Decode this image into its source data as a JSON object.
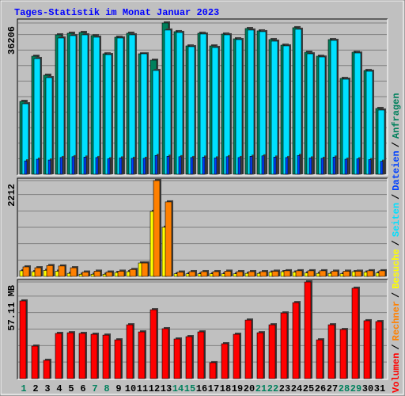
{
  "title": "Tages-Statistik im Monat Januar 2023",
  "legend_separator": "/",
  "chart_data": [
    {
      "type": "bar",
      "ylim": [
        0,
        36206
      ],
      "yticks": [
        36206
      ],
      "series": [
        {
          "name": "Anfragen",
          "color": "#00805c",
          "values": [
            17440,
            28250,
            23700,
            33370,
            33750,
            33940,
            33180,
            28820,
            32800,
            33750,
            28820,
            27300,
            36206,
            34130,
            30710,
            33750,
            30710,
            33560,
            32420,
            34880,
            34320,
            32230,
            30900,
            35080,
            29200,
            28250,
            32230,
            22940,
            29200,
            24840,
            15740
          ]
        },
        {
          "name": "Seiten",
          "color": "#00e0ff",
          "values": [
            16870,
            27680,
            23130,
            32610,
            33180,
            33370,
            32800,
            28630,
            32610,
            33370,
            28820,
            24840,
            34510,
            33940,
            30530,
            33560,
            30340,
            33370,
            32230,
            34510,
            34130,
            31850,
            30720,
            34700,
            28820,
            28060,
            32040,
            22750,
            29010,
            24650,
            15360
          ]
        },
        {
          "name": "Dateien",
          "color": "#0040ff",
          "values": [
            3200,
            3600,
            3400,
            4000,
            4200,
            4100,
            4000,
            3700,
            3900,
            3800,
            3800,
            4500,
            4300,
            4200,
            4000,
            4100,
            3900,
            4200,
            4000,
            4300,
            4400,
            4100,
            4000,
            4500,
            3900,
            3800,
            4100,
            3600,
            3700,
            3500,
            3100
          ]
        }
      ]
    },
    {
      "type": "bar",
      "ylim": [
        0,
        2212
      ],
      "yticks": [
        2212
      ],
      "series": [
        {
          "name": "Besuche",
          "color": "#ffff00",
          "values": [
            130,
            110,
            140,
            120,
            70,
            50,
            50,
            50,
            90,
            110,
            310,
            1500,
            1134,
            60,
            60,
            60,
            60,
            60,
            60,
            70,
            70,
            100,
            110,
            100,
            80,
            70,
            70,
            60,
            110,
            100,
            80
          ]
        },
        {
          "name": "Rechner",
          "color": "#ff8000",
          "values": [
            220,
            200,
            250,
            240,
            200,
            100,
            120,
            100,
            120,
            160,
            310,
            2212,
            1720,
            100,
            110,
            110,
            110,
            120,
            110,
            110,
            110,
            120,
            130,
            130,
            130,
            130,
            120,
            120,
            120,
            130,
            130
          ]
        }
      ]
    },
    {
      "type": "bar",
      "ylim": [
        0,
        57.11
      ],
      "yticks": [
        {
          "value": 57.11,
          "label": "57.11 MB"
        }
      ],
      "categories": [
        "1",
        "2",
        "3",
        "4",
        "5",
        "6",
        "7",
        "8",
        "9",
        "10",
        "11",
        "12",
        "13",
        "14",
        "15",
        "16",
        "17",
        "18",
        "19",
        "20",
        "21",
        "22",
        "23",
        "24",
        "25",
        "26",
        "27",
        "28",
        "29",
        "30",
        "31"
      ],
      "category_colors": [
        "#00805c",
        "#000000",
        "#000000",
        "#000000",
        "#000000",
        "#000000",
        "#00805c",
        "#00805c",
        "#000000",
        "#000000",
        "#000000",
        "#000000",
        "#000000",
        "#00805c",
        "#00805c",
        "#000000",
        "#000000",
        "#000000",
        "#000000",
        "#000000",
        "#00805c",
        "#00805c",
        "#000000",
        "#000000",
        "#000000",
        "#000000",
        "#000000",
        "#00805c",
        "#00805c",
        "#000000",
        "#000000"
      ],
      "series": [
        {
          "name": "Volumen",
          "color": "#ff0000",
          "values": [
            45.9,
            19.2,
            10.8,
            26.7,
            27.1,
            26.7,
            26.2,
            25.7,
            22.9,
            31.8,
            27.6,
            40.7,
            29.5,
            23.4,
            24.8,
            27.6,
            9.4,
            20.6,
            26.2,
            34.6,
            27.1,
            31.8,
            38.8,
            44.9,
            57.11,
            22.9,
            31.8,
            29.0,
            53.4,
            34.2,
            33.7
          ]
        }
      ]
    }
  ]
}
